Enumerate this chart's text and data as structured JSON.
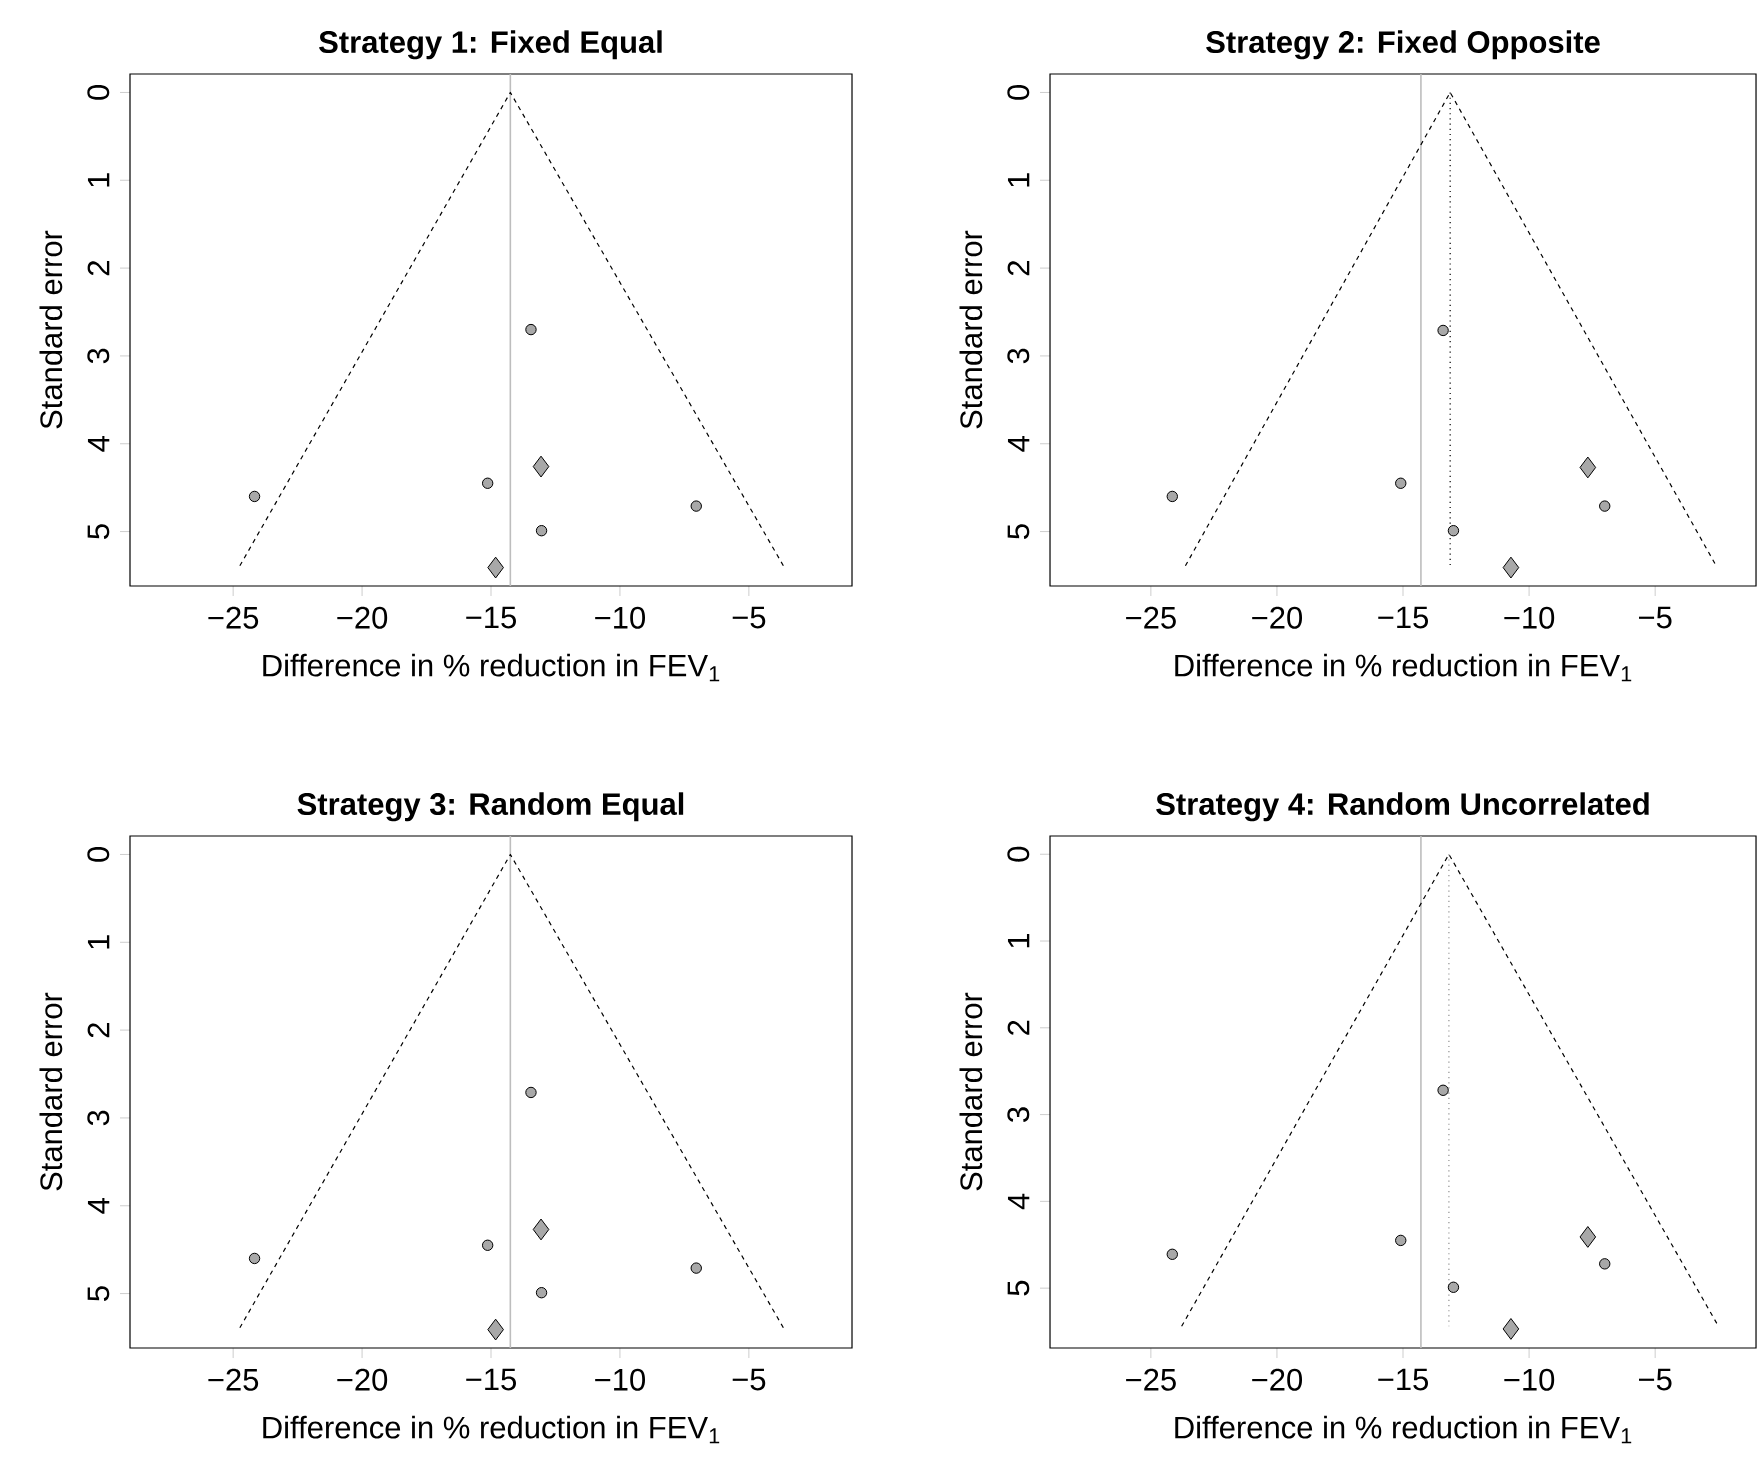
{
  "chart_data": [
    {
      "type": "scatter",
      "title": "Strategy 1: Fixed Equal",
      "xlabel": "Difference in % reduction in FEV$_{1}$",
      "ylabel": "Standard error",
      "xlim": [
        -29,
        -1
      ],
      "ylim": [
        5.62,
        -0.21
      ],
      "xticks": [
        {
          "value": -25,
          "label": "−25"
        },
        {
          "value": -20,
          "label": "−20"
        },
        {
          "value": -15,
          "label": "−15"
        },
        {
          "value": -10,
          "label": "−10"
        },
        {
          "value": -5,
          "label": "−5"
        }
      ],
      "yticks": [
        0,
        1,
        2,
        3,
        4,
        5
      ],
      "grid": false,
      "ref_lines": [
        {
          "axis": "x",
          "value": -14.25,
          "color": "#bdbdbd",
          "line_style": "solid"
        }
      ],
      "series": [
        {
          "type": "line",
          "color": "#000000",
          "line_style": "dashed",
          "marker": "none",
          "x": [
            -24.74,
            -14.25,
            -3.66
          ],
          "values": [
            5.39,
            0,
            5.39
          ]
        },
        {
          "color": "#a8a8a8",
          "marker": "circle",
          "x": [
            -13.45,
            -15.13,
            -24.17,
            -7.04,
            -13.04
          ],
          "values": [
            2.7,
            4.45,
            4.6,
            4.71,
            4.99
          ]
        },
        {
          "color": "#a8a8a8",
          "marker": "diamond",
          "x": [
            -13.06,
            -14.82
          ],
          "values": [
            4.26,
            5.41
          ]
        }
      ]
    },
    {
      "type": "scatter",
      "title": "Strategy 2: Fixed Opposite",
      "xlabel": "Difference in % reduction in FEV$_{1}$",
      "ylabel": "Standard error",
      "xlim": [
        -29,
        -1
      ],
      "ylim": [
        5.62,
        -0.21
      ],
      "xticks": [
        {
          "value": -25,
          "label": "−25"
        },
        {
          "value": -20,
          "label": "−20"
        },
        {
          "value": -15,
          "label": "−15"
        },
        {
          "value": -10,
          "label": "−10"
        },
        {
          "value": -5,
          "label": "−5"
        }
      ],
      "yticks": [
        0,
        1,
        2,
        3,
        4,
        5
      ],
      "grid": false,
      "ref_lines": [
        {
          "axis": "x",
          "value": -14.29,
          "color": "#bdbdbd",
          "line_style": "solid"
        }
      ],
      "series": [
        {
          "type": "line",
          "color": "#000000",
          "line_style": "dashed",
          "marker": "none",
          "x": [
            -23.63,
            -13.13,
            -2.58
          ],
          "values": [
            5.39,
            0,
            5.39
          ]
        },
        {
          "type": "line",
          "color": "#000000",
          "line_style": "dotted",
          "marker": "none",
          "x": [
            -13.13,
            -13.13
          ],
          "values": [
            0,
            5.41
          ]
        },
        {
          "color": "#a8a8a8",
          "marker": "circle",
          "x": [
            -13.41,
            -15.09,
            -24.15,
            -7.0,
            -13.0
          ],
          "values": [
            2.71,
            4.45,
            4.6,
            4.71,
            4.99
          ]
        },
        {
          "color": "#a8a8a8",
          "marker": "diamond",
          "x": [
            -7.67,
            -10.72
          ],
          "values": [
            4.27,
            5.41
          ]
        }
      ]
    },
    {
      "type": "scatter",
      "title": "Strategy 3: Random Equal",
      "xlabel": "Difference in % reduction in FEV$_{1}$",
      "ylabel": "Standard error",
      "xlim": [
        -29,
        -1
      ],
      "ylim": [
        5.62,
        -0.21
      ],
      "xticks": [
        {
          "value": -25,
          "label": "−25"
        },
        {
          "value": -20,
          "label": "−20"
        },
        {
          "value": -15,
          "label": "−15"
        },
        {
          "value": -10,
          "label": "−10"
        },
        {
          "value": -5,
          "label": "−5"
        }
      ],
      "yticks": [
        0,
        1,
        2,
        3,
        4,
        5
      ],
      "grid": false,
      "ref_lines": [
        {
          "axis": "x",
          "value": -14.25,
          "color": "#bdbdbd",
          "line_style": "solid"
        }
      ],
      "series": [
        {
          "type": "line",
          "color": "#000000",
          "line_style": "dashed",
          "marker": "none",
          "x": [
            -24.74,
            -14.25,
            -3.66
          ],
          "values": [
            5.39,
            0,
            5.39
          ]
        },
        {
          "color": "#a8a8a8",
          "marker": "circle",
          "x": [
            -13.45,
            -15.13,
            -24.17,
            -7.04,
            -13.04
          ],
          "values": [
            2.71,
            4.45,
            4.6,
            4.71,
            4.99
          ]
        },
        {
          "color": "#a8a8a8",
          "marker": "diamond",
          "x": [
            -13.06,
            -14.82
          ],
          "values": [
            4.27,
            5.41
          ]
        }
      ]
    },
    {
      "type": "scatter",
      "title": "Strategy 4: Random Uncorrelated",
      "xlabel": "Difference in % reduction in FEV$_{1}$",
      "ylabel": "Standard error",
      "xlim": [
        -29,
        -1
      ],
      "ylim": [
        5.69,
        -0.21
      ],
      "xticks": [
        {
          "value": -25,
          "label": "−25"
        },
        {
          "value": -20,
          "label": "−20"
        },
        {
          "value": -15,
          "label": "−15"
        },
        {
          "value": -10,
          "label": "−10"
        },
        {
          "value": -5,
          "label": "−5"
        }
      ],
      "yticks": [
        0,
        1,
        2,
        3,
        4,
        5
      ],
      "grid": false,
      "ref_lines": [
        {
          "axis": "x",
          "value": -14.29,
          "color": "#bdbdbd",
          "line_style": "solid"
        }
      ],
      "series": [
        {
          "type": "line",
          "color": "#000000",
          "line_style": "dashed",
          "marker": "none",
          "x": [
            -23.78,
            -13.18,
            -2.49
          ],
          "values": [
            5.44,
            0,
            5.44
          ]
        },
        {
          "type": "line",
          "color": "#909090",
          "line_style": "dotted",
          "marker": "none",
          "x": [
            -13.18,
            -13.18
          ],
          "values": [
            0,
            5.44
          ]
        },
        {
          "color": "#a8a8a8",
          "marker": "circle",
          "x": [
            -13.41,
            -15.09,
            -24.15,
            -7.0,
            -13.0
          ],
          "values": [
            2.72,
            4.45,
            4.61,
            4.72,
            4.99
          ]
        },
        {
          "color": "#a8a8a8",
          "marker": "diamond",
          "x": [
            -7.67,
            -10.72
          ],
          "values": [
            4.41,
            5.47
          ]
        }
      ]
    }
  ]
}
